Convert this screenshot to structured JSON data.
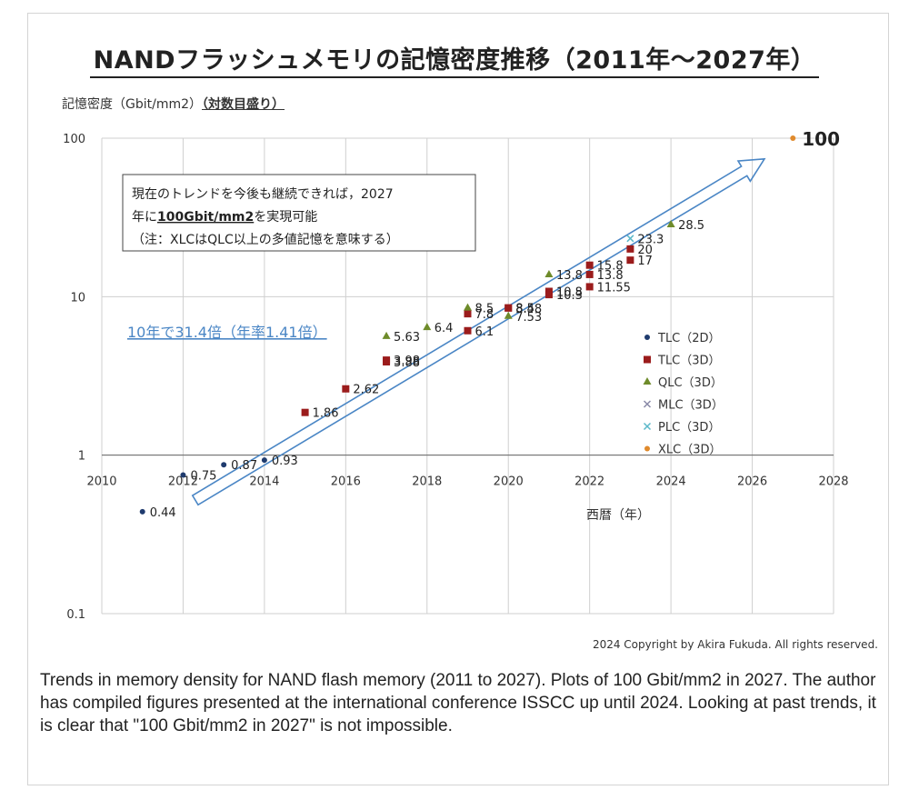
{
  "title": "NANDフラッシュメモリの記憶密度推移（2011年～2027年）",
  "ylabel_main": "記憶密度（Gbit/mm2）",
  "ylabel_scale": "（対数目盛り）",
  "xlabel": "西暦（年）",
  "note_lines": [
    "現在のトレンドを今後も継続できれば，2027",
    "年に",
    "100Gbit/mm2",
    "を実現可能",
    "（注：XLCはQLC以上の多値記憶を意味する）"
  ],
  "trend_label": "10年で31.4倍（年率1.41倍）",
  "copyright": "2024 Copyright by Akira Fukuda. All rights reserved.",
  "caption": "Trends in memory density for NAND flash memory (2011 to 2027). Plots of 100 Gbit/mm2 in 2027. The author has compiled figures presented at the international conference ISSCC up until 2024. Looking at past trends, it is clear that \"100 Gbit/mm2 in 2027\" is not impossible.",
  "colors": {
    "TLC(2D)": "#1f3b6e",
    "TLC(3D)": "#9b1c1c",
    "QLC(3D)": "#6e8b2a",
    "MLC(3D)": "#8a8aa8",
    "PLC(3D)": "#5bb8c9",
    "XLC(3D)": "#e08a2c",
    "trend": "#4a86c5"
  },
  "chart_data": {
    "type": "scatter",
    "title": "NANDフラッシュメモリの記憶密度推移（2011年～2027年）",
    "xlabel": "西暦（年）",
    "ylabel": "記憶密度（Gbit/mm2）（対数目盛り）",
    "xlim": [
      2010,
      2028
    ],
    "ylim": [
      0.1,
      100
    ],
    "yscale": "log",
    "x_ticks": [
      "2010",
      "2012",
      "2014",
      "2016",
      "2018",
      "2020",
      "2022",
      "2024",
      "2026",
      "2028"
    ],
    "y_ticks": [
      "0.1",
      "1",
      "10",
      "100"
    ],
    "grid": "vertical",
    "legend": "right",
    "series": [
      {
        "name": "TLC（2D）",
        "key": "TLC(2D)",
        "marker": "dot",
        "points": [
          [
            2011,
            0.44,
            "0.44"
          ],
          [
            2012,
            0.75,
            "0.75"
          ],
          [
            2013,
            0.87,
            "0.87"
          ],
          [
            2014,
            0.93,
            "0.93"
          ]
        ]
      },
      {
        "name": "TLC（3D）",
        "key": "TLC(3D)",
        "marker": "square",
        "points": [
          [
            2015,
            1.86,
            "1.86"
          ],
          [
            2016,
            2.62,
            "2.62"
          ],
          [
            2017,
            3.98,
            "3.98"
          ],
          [
            2017,
            3.88,
            "3.88"
          ],
          [
            2019,
            6.1,
            "6.1"
          ],
          [
            2019,
            7.8,
            "7.8"
          ],
          [
            2020,
            8.5,
            "8.5"
          ],
          [
            2020,
            8.48,
            "8.48"
          ],
          [
            2021,
            10.8,
            "10.8"
          ],
          [
            2021,
            10.3,
            "10.3"
          ],
          [
            2022,
            11.55,
            "11.55"
          ],
          [
            2022,
            13.8,
            "13.8"
          ],
          [
            2022,
            15.8,
            "15.8"
          ],
          [
            2023,
            17,
            "17"
          ],
          [
            2023,
            20,
            "20"
          ]
        ]
      },
      {
        "name": "QLC（3D）",
        "key": "QLC(3D)",
        "marker": "triangle",
        "points": [
          [
            2017,
            5.63,
            "5.63"
          ],
          [
            2018,
            6.4,
            "6.4"
          ],
          [
            2019,
            8.5,
            "8.5"
          ],
          [
            2020,
            7.53,
            "7.53"
          ],
          [
            2021,
            13.8,
            "13.8"
          ],
          [
            2024,
            28.5,
            "28.5"
          ]
        ]
      },
      {
        "name": "MLC（3D）",
        "key": "MLC(3D)",
        "marker": "x",
        "points": []
      },
      {
        "name": "PLC（3D）",
        "key": "PLC(3D)",
        "marker": "x",
        "points": [
          [
            2023,
            23.3,
            "23.3"
          ]
        ]
      },
      {
        "name": "XLC（3D）",
        "key": "XLC(3D)",
        "marker": "dot",
        "points": [
          [
            2027,
            100,
            "100"
          ]
        ]
      }
    ]
  }
}
